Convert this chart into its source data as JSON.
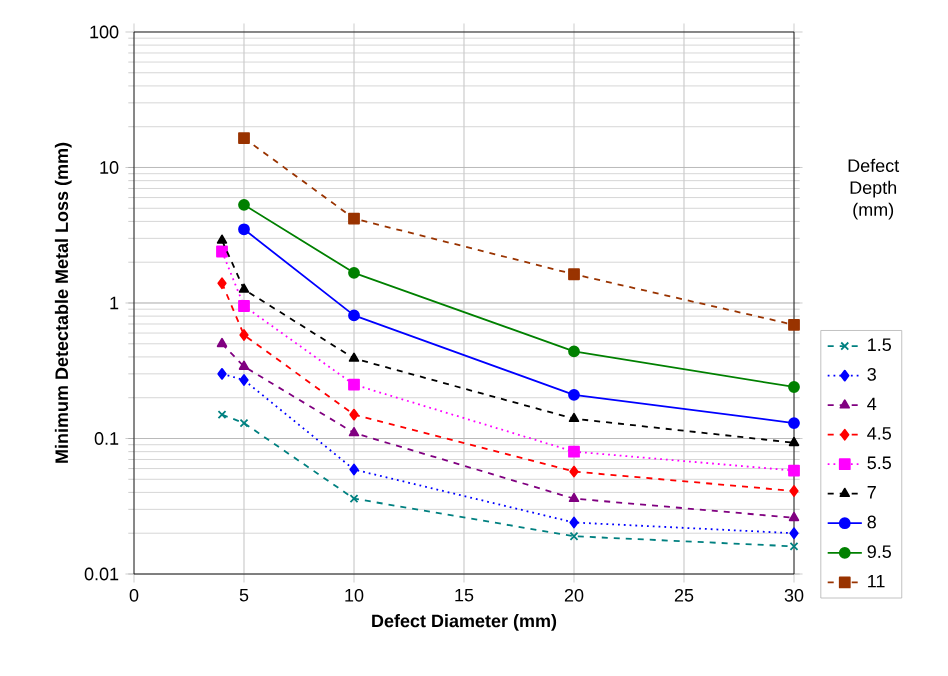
{
  "chart_data": {
    "type": "line",
    "xlabel": "Defect Diameter (mm)",
    "ylabel": "Minimum Detectable Metal Loss (mm)",
    "legend_title": "Defect Depth (mm)",
    "x": [
      4,
      5,
      10,
      20,
      30
    ],
    "series": [
      {
        "name": "1.5",
        "color": "#008080",
        "marker": "cross",
        "line_style": "dashed",
        "values": [
          0.15,
          0.13,
          0.036,
          0.019,
          0.016
        ]
      },
      {
        "name": "3",
        "color": "#0000ff",
        "marker": "diamond",
        "line_style": "dotted",
        "values": [
          0.3,
          0.27,
          0.059,
          0.024,
          0.02
        ]
      },
      {
        "name": "4",
        "color": "#800080",
        "marker": "triangle",
        "line_style": "dashed",
        "values": [
          0.5,
          0.34,
          0.11,
          0.036,
          0.026
        ]
      },
      {
        "name": "4.5",
        "color": "#ff0000",
        "marker": "diamond",
        "line_style": "dashed",
        "values": [
          1.4,
          0.58,
          0.15,
          0.057,
          0.041
        ]
      },
      {
        "name": "5.5",
        "color": "#ff00ff",
        "marker": "square",
        "line_style": "dotted",
        "values": [
          2.4,
          0.95,
          0.25,
          0.08,
          0.058
        ]
      },
      {
        "name": "7",
        "color": "#000000",
        "marker": "triangle",
        "line_style": "dashed",
        "values": [
          2.9,
          1.26,
          0.39,
          0.14,
          0.093
        ]
      },
      {
        "name": "8",
        "color": "#0000ff",
        "marker": "circle",
        "line_style": "solid",
        "x": [
          5,
          10,
          20,
          30
        ],
        "values": [
          3.5,
          0.81,
          0.21,
          0.13
        ]
      },
      {
        "name": "9.5",
        "color": "#008000",
        "marker": "circle",
        "line_style": "solid",
        "x": [
          5,
          10,
          20,
          30
        ],
        "values": [
          5.3,
          1.67,
          0.44,
          0.24
        ]
      },
      {
        "name": "11",
        "color": "#993300",
        "marker": "square",
        "line_style": "dashed",
        "x": [
          5,
          10,
          20,
          30
        ],
        "values": [
          16.5,
          4.2,
          1.63,
          0.69
        ]
      }
    ],
    "xlim": [
      0,
      30
    ],
    "xticks": [
      0,
      5,
      10,
      15,
      20,
      25,
      30
    ],
    "ylim": [
      0.01,
      100
    ],
    "yticks": [
      0.01,
      0.1,
      1,
      10,
      100
    ],
    "log": "y",
    "grid": true,
    "legend": "right"
  }
}
